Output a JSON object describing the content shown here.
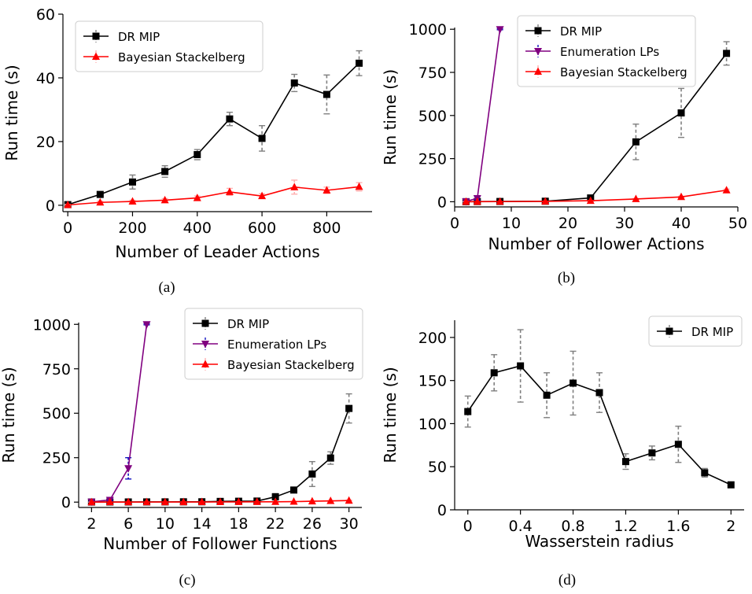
{
  "chart_data": [
    {
      "type": "line",
      "caption": "(a)",
      "xlabel": "Number of Leader Actions",
      "ylabel": "Run time (s)",
      "xlim": [
        -15,
        940
      ],
      "ylim": [
        -2,
        60
      ],
      "xticks": [
        0,
        200,
        400,
        600,
        800
      ],
      "yticks": [
        0,
        20,
        40,
        60
      ],
      "grid": false,
      "legend_position": "top-left",
      "series": [
        {
          "name": "DR MIP",
          "color": "#000000",
          "marker": "square",
          "x": [
            0,
            100,
            200,
            300,
            400,
            500,
            600,
            700,
            800,
            900
          ],
          "y": [
            0.2,
            3.4,
            7.3,
            10.6,
            15.9,
            27.1,
            21.0,
            38.4,
            34.8,
            44.6
          ],
          "err": [
            0.4,
            0.8,
            2.2,
            1.8,
            1.6,
            2.1,
            4.0,
            2.7,
            6.1,
            3.9
          ]
        },
        {
          "name": "Bayesian Stackelberg",
          "color": "#ff0000",
          "marker": "triangle-up",
          "x": [
            0,
            100,
            200,
            300,
            400,
            500,
            600,
            700,
            800,
            900
          ],
          "y": [
            0.1,
            0.9,
            1.2,
            1.6,
            2.3,
            4.2,
            2.9,
            5.7,
            4.7,
            5.8
          ],
          "err": [
            0.2,
            0.4,
            0.4,
            0.5,
            0.6,
            1.1,
            0.7,
            2.2,
            1.0,
            1.3
          ]
        }
      ]
    },
    {
      "type": "line",
      "caption": "(b)",
      "xlabel": "Number of Follower Actions",
      "ylabel": "Run time (s)",
      "xlim": [
        0,
        50
      ],
      "ylim": [
        -30,
        1010
      ],
      "xticks": [
        0,
        10,
        20,
        30,
        40,
        50
      ],
      "yticks": [
        0,
        250,
        500,
        750,
        1000
      ],
      "grid": false,
      "legend_position": "top-center",
      "series": [
        {
          "name": "DR MIP",
          "color": "#000000",
          "marker": "square",
          "x": [
            2,
            4,
            8,
            16,
            24,
            32,
            40,
            48
          ],
          "y": [
            0.4,
            1,
            1.5,
            3,
            22,
            347,
            515,
            860
          ],
          "err": [
            0.2,
            0.5,
            0.8,
            1.5,
            8,
            103,
            142,
            68
          ]
        },
        {
          "name": "Enumeration LPs",
          "color": "#800080",
          "marker": "triangle-down",
          "x": [
            2,
            4,
            8
          ],
          "y": [
            2,
            20,
            1000
          ],
          "err": [
            1,
            10,
            3
          ]
        },
        {
          "name": "Bayesian Stackelberg",
          "color": "#ff0000",
          "marker": "triangle-up",
          "x": [
            2,
            4,
            8,
            16,
            24,
            32,
            40,
            48
          ],
          "y": [
            0.1,
            0.3,
            0.8,
            2,
            6,
            16,
            28,
            67
          ],
          "err": [
            0.1,
            0.1,
            0.2,
            0.5,
            1,
            3,
            4,
            6
          ]
        }
      ]
    },
    {
      "type": "line",
      "caption": "(c)",
      "xlabel": "Number of Follower Functions",
      "ylabel": "Run time (s)",
      "xlim": [
        0.6,
        31.4
      ],
      "ylim": [
        -30,
        1010
      ],
      "xticks": [
        2,
        6,
        10,
        14,
        18,
        22,
        26,
        30
      ],
      "yticks": [
        0,
        250,
        500,
        750,
        1000
      ],
      "grid": false,
      "legend_position": "top-right",
      "series": [
        {
          "name": "DR MIP",
          "color": "#000000",
          "marker": "square",
          "x": [
            2,
            4,
            6,
            8,
            10,
            12,
            14,
            16,
            18,
            20,
            22,
            24,
            26,
            28,
            30
          ],
          "y": [
            0.5,
            0.8,
            1,
            1.2,
            1.5,
            1.8,
            2,
            4,
            5,
            6,
            30,
            68,
            158,
            248,
            527
          ],
          "err": [
            0.3,
            0.4,
            0.5,
            0.5,
            0.6,
            0.7,
            0.8,
            2,
            3,
            3,
            18,
            12,
            70,
            35,
            82
          ]
        },
        {
          "name": "Enumeration LPs",
          "color": "#800080",
          "marker": "triangle-down",
          "x": [
            2,
            4,
            6,
            8
          ],
          "y": [
            2,
            12,
            190,
            1000
          ],
          "err": [
            1,
            5,
            60,
            3
          ]
        },
        {
          "name": "Bayesian Stackelberg",
          "color": "#ff0000",
          "marker": "triangle-up",
          "x": [
            2,
            4,
            6,
            8,
            10,
            12,
            14,
            16,
            18,
            20,
            22,
            24,
            26,
            28,
            30
          ],
          "y": [
            0.1,
            0.2,
            0.3,
            0.4,
            0.5,
            0.6,
            0.8,
            1,
            1.3,
            1.6,
            2,
            3,
            5,
            7,
            9
          ],
          "err": [
            0.1,
            0.1,
            0.1,
            0.1,
            0.2,
            0.2,
            0.3,
            0.3,
            0.4,
            0.5,
            0.6,
            0.8,
            1,
            1.5,
            2
          ]
        }
      ]
    },
    {
      "type": "line",
      "caption": "(d)",
      "xlabel": "Wasserstein radius",
      "ylabel": "Run time (s)",
      "xlim": [
        -0.1,
        2.1
      ],
      "ylim": [
        0,
        220
      ],
      "xticks": [
        0,
        0.4,
        0.8,
        1.2,
        1.6,
        2
      ],
      "yticks": [
        0,
        50,
        100,
        150,
        200
      ],
      "grid": false,
      "legend_position": "top-right",
      "series": [
        {
          "name": "DR MIP",
          "color": "#000000",
          "marker": "square",
          "x": [
            0,
            0.2,
            0.4,
            0.6,
            0.8,
            1.0,
            1.2,
            1.4,
            1.6,
            1.8,
            2.0
          ],
          "y": [
            114,
            159,
            167,
            133,
            147,
            136,
            56,
            66,
            76,
            43,
            29
          ],
          "err": [
            18,
            21,
            42,
            26,
            37,
            23,
            9,
            8,
            21,
            5,
            2
          ]
        }
      ]
    }
  ]
}
